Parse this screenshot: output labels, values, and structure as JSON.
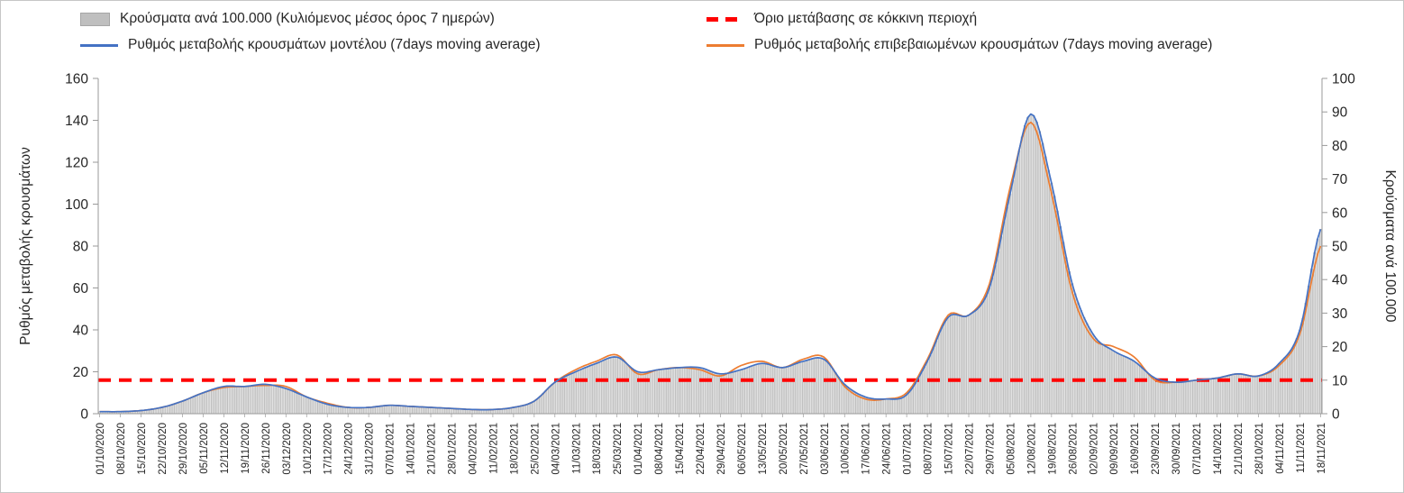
{
  "chart_data": {
    "type": "combo-bar-line",
    "legend_position": "top",
    "grid": false,
    "x_tick_label_rotation": -90,
    "legend": [
      {
        "label": "Κρούσματα ανά 100.000 (Κυλιόμενος μέσος όρος 7 ημερών)",
        "swatch": "bar",
        "color": "#bfbfbf",
        "border_color": "#a6a6a6"
      },
      {
        "label": "Όριο μετάβασης σε κόκκινη περιοχή",
        "swatch": "dashed",
        "color": "#ff0000"
      },
      {
        "label": "Ρυθμός μεταβολής κρουσμάτων μοντέλου (7days moving average)",
        "swatch": "line",
        "color": "#4472c4"
      },
      {
        "label": "Ρυθμός μεταβολής επιβεβαιωμένων κρουσμάτων (7days moving average)",
        "swatch": "line",
        "color": "#ed7d31"
      }
    ],
    "left_axis": {
      "label": "Ρυθμός μεταβολής κρουσμάτων",
      "min": 0,
      "max": 160,
      "ticks": [
        0,
        20,
        40,
        60,
        80,
        100,
        120,
        140,
        160
      ]
    },
    "right_axis": {
      "label": "Κρούσματα ανά 100.000",
      "min": 0,
      "max": 100,
      "ticks": [
        0,
        10,
        20,
        30,
        40,
        50,
        60,
        70,
        80,
        90,
        100
      ]
    },
    "categories": [
      "01/10/2020",
      "08/10/2020",
      "15/10/2020",
      "22/10/2020",
      "29/10/2020",
      "05/11/2020",
      "12/11/2020",
      "19/11/2020",
      "26/11/2020",
      "03/12/2020",
      "10/12/2020",
      "17/12/2020",
      "24/12/2020",
      "31/12/2020",
      "07/01/2021",
      "14/01/2021",
      "21/01/2021",
      "28/01/2021",
      "04/02/2021",
      "11/02/2021",
      "18/02/2021",
      "25/02/2021",
      "04/03/2021",
      "11/03/2021",
      "18/03/2021",
      "25/03/2021",
      "01/04/2021",
      "08/04/2021",
      "15/04/2021",
      "22/04/2021",
      "29/04/2021",
      "06/05/2021",
      "13/05/2021",
      "20/05/2021",
      "27/05/2021",
      "03/06/2021",
      "10/06/2021",
      "17/06/2021",
      "24/06/2021",
      "01/07/2021",
      "08/07/2021",
      "15/07/2021",
      "22/07/2021",
      "29/07/2021",
      "05/08/2021",
      "12/08/2021",
      "19/08/2021",
      "26/08/2021",
      "02/09/2021",
      "09/09/2021",
      "16/09/2021",
      "23/09/2021",
      "30/09/2021",
      "07/10/2021",
      "14/10/2021",
      "21/10/2021",
      "28/10/2021",
      "04/11/2021",
      "11/11/2021",
      "18/11/2021"
    ],
    "series": [
      {
        "name": "Κρούσματα ανά 100.000 (Κυλιόμενος μέσος όρος 7 ημερών)",
        "type": "bar",
        "axis": "right",
        "color": "#d9d9d9",
        "border_color": "#a6a6a6",
        "values": [
          0.6,
          0.6,
          0.9,
          1.9,
          3.8,
          6.3,
          8.1,
          8.1,
          8.8,
          7.5,
          5,
          2.8,
          1.9,
          1.9,
          2.5,
          2.2,
          1.9,
          1.6,
          1.3,
          1.3,
          1.9,
          3.8,
          9.4,
          12.5,
          15,
          16.9,
          12.5,
          13.1,
          13.8,
          13.8,
          11.9,
          13.1,
          15,
          13.8,
          15.6,
          16.3,
          8.8,
          5,
          4.4,
          5.6,
          15.6,
          28.8,
          29.4,
          37.5,
          65.6,
          89.4,
          68.8,
          38.8,
          23.8,
          18.8,
          15.6,
          10.6,
          9.4,
          10,
          10.6,
          11.9,
          11.3,
          15,
          25,
          55
        ]
      },
      {
        "name": "Ρυθμός μεταβολής επιβεβαιωμένων κρουσμάτων (7days moving average)",
        "type": "line",
        "axis": "left",
        "color": "#ed7d31",
        "values": [
          1,
          1,
          1.5,
          3,
          6,
          10,
          12.5,
          13,
          13.5,
          13,
          8,
          5,
          3,
          3,
          4,
          3.5,
          3,
          2.5,
          2,
          2,
          3,
          6,
          15,
          21,
          25,
          28,
          19,
          21,
          22,
          21,
          18,
          23,
          25,
          22,
          26,
          27,
          13,
          7,
          7,
          10,
          26,
          47,
          47,
          62,
          108,
          139,
          105,
          58,
          36,
          32,
          27,
          16,
          15,
          16,
          17,
          19,
          18,
          23,
          38,
          80
        ]
      },
      {
        "name": "Ρυθμός μεταβολής κρουσμάτων μοντέλου (7days moving average)",
        "type": "line",
        "axis": "left",
        "color": "#4472c4",
        "values": [
          1,
          1,
          1.5,
          3,
          6,
          10,
          13,
          13,
          14,
          12,
          8,
          4.5,
          3,
          3,
          4,
          3.5,
          3,
          2.5,
          2,
          2,
          3,
          6,
          15,
          20,
          24,
          27,
          20,
          21,
          22,
          22,
          19,
          21,
          24,
          22,
          25,
          26,
          14,
          8,
          7,
          9,
          25,
          46,
          47,
          60,
          105,
          143,
          110,
          62,
          38,
          30,
          25,
          17,
          15,
          16,
          17,
          19,
          18,
          24,
          40,
          88
        ]
      }
    ],
    "threshold": {
      "name": "Όριο μετάβασης σε κόκκινη περιοχή",
      "axis": "right",
      "value": 10,
      "left_axis_equivalent": 16,
      "color": "#ff0000",
      "style": "dashed"
    }
  }
}
